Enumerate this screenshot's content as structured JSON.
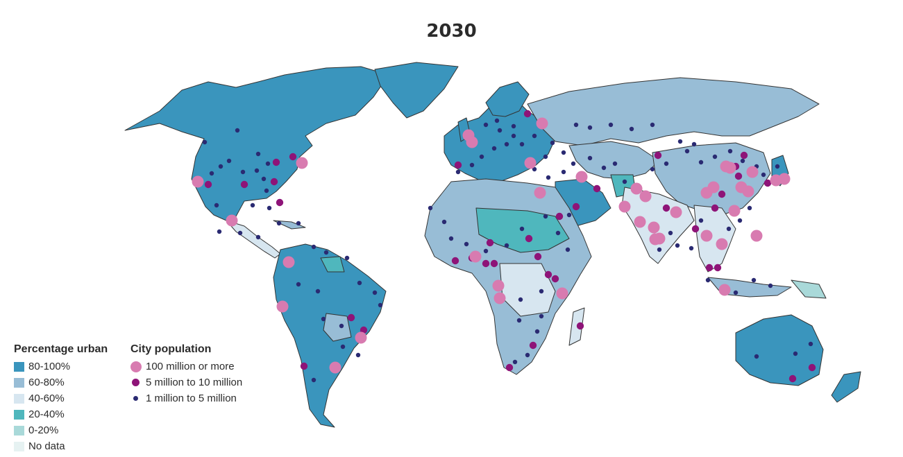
{
  "title": "2030",
  "colors": {
    "land_80_100": "#3a95bd",
    "land_60_80": "#98bdd6",
    "land_40_60": "#d7e6f0",
    "land_20_40": "#4fb7bd",
    "land_0_20": "#a9d9d9",
    "no_data": "#e6f2f2",
    "border": "#333333",
    "city_large": "#d87bb0",
    "city_medium": "#8e1478",
    "city_small": "#2a2a72"
  },
  "legend_urban": {
    "heading": "Percentage urban",
    "items": [
      {
        "label": "80-100%",
        "color": "#3a95bd"
      },
      {
        "label": "60-80%",
        "color": "#98bdd6"
      },
      {
        "label": "40-60%",
        "color": "#d7e6f0"
      },
      {
        "label": "20-40%",
        "color": "#4fb7bd"
      },
      {
        "label": "0-20%",
        "color": "#a9d9d9"
      },
      {
        "label": "No data",
        "color": "#e6f2f2"
      }
    ]
  },
  "legend_city": {
    "heading": "City population",
    "items": [
      {
        "label": "100 million or more",
        "color": "#d87bb0",
        "size": "large"
      },
      {
        "label": "5 million to 10 million",
        "color": "#8e1478",
        "size": "medium"
      },
      {
        "label": "1 million to 5 million",
        "color": "#2a2a72",
        "size": "small"
      }
    ]
  }
}
